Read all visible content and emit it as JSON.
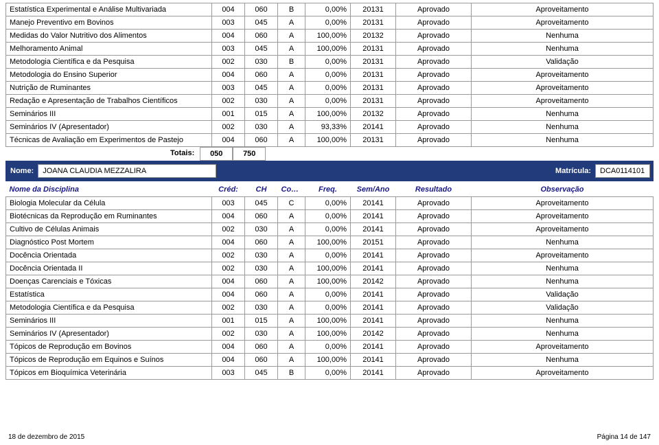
{
  "colors": {
    "border": "#999999",
    "headerText": "#1a1a88",
    "barBg": "#223b7a",
    "barText": "#ffffff"
  },
  "columns": {
    "name": "Nome da Disciplina",
    "cred": "Créd:",
    "ch": "CH",
    "conc": "Conc.",
    "freq": "Freq.",
    "sem": "Sem/Ano",
    "res": "Resultado",
    "obs": "Observação"
  },
  "section1": {
    "rows": [
      {
        "name": "Estatística Experimental e Análise Multivariada",
        "cred": "004",
        "ch": "060",
        "conc": "B",
        "freq": "0,00%",
        "sem": "20131",
        "res": "Aprovado",
        "obs": "Aproveitamento"
      },
      {
        "name": "Manejo Preventivo em Bovinos",
        "cred": "003",
        "ch": "045",
        "conc": "A",
        "freq": "0,00%",
        "sem": "20131",
        "res": "Aprovado",
        "obs": "Aproveitamento"
      },
      {
        "name": "Medidas do Valor Nutritivo dos Alimentos",
        "cred": "004",
        "ch": "060",
        "conc": "A",
        "freq": "100,00%",
        "sem": "20132",
        "res": "Aprovado",
        "obs": "Nenhuma"
      },
      {
        "name": "Melhoramento Animal",
        "cred": "003",
        "ch": "045",
        "conc": "A",
        "freq": "100,00%",
        "sem": "20131",
        "res": "Aprovado",
        "obs": "Nenhuma"
      },
      {
        "name": "Metodologia Científica e da Pesquisa",
        "cred": "002",
        "ch": "030",
        "conc": "B",
        "freq": "0,00%",
        "sem": "20131",
        "res": "Aprovado",
        "obs": "Validação"
      },
      {
        "name": "Metodologia do Ensino Superior",
        "cred": "004",
        "ch": "060",
        "conc": "A",
        "freq": "0,00%",
        "sem": "20131",
        "res": "Aprovado",
        "obs": "Aproveitamento"
      },
      {
        "name": "Nutrição de Ruminantes",
        "cred": "003",
        "ch": "045",
        "conc": "A",
        "freq": "0,00%",
        "sem": "20131",
        "res": "Aprovado",
        "obs": "Aproveitamento"
      },
      {
        "name": "Redação e Apresentação de Trabalhos Científicos",
        "cred": "002",
        "ch": "030",
        "conc": "A",
        "freq": "0,00%",
        "sem": "20131",
        "res": "Aprovado",
        "obs": "Aproveitamento"
      },
      {
        "name": "Seminários III",
        "cred": "001",
        "ch": "015",
        "conc": "A",
        "freq": "100,00%",
        "sem": "20132",
        "res": "Aprovado",
        "obs": "Nenhuma"
      },
      {
        "name": "Seminários IV (Apresentador)",
        "cred": "002",
        "ch": "030",
        "conc": "A",
        "freq": "93,33%",
        "sem": "20141",
        "res": "Aprovado",
        "obs": "Nenhuma"
      },
      {
        "name": "Técnicas de Avaliação em Experimentos de Pastejo",
        "cred": "004",
        "ch": "060",
        "conc": "A",
        "freq": "100,00%",
        "sem": "20131",
        "res": "Aprovado",
        "obs": "Nenhuma"
      }
    ],
    "totals": {
      "label": "Totais:",
      "cred": "050",
      "ch": "750"
    }
  },
  "studentBar": {
    "nameLabel": "Nome:",
    "nameValue": "JOANA CLAUDIA MEZZALIRA",
    "matLabel": "Matrícula:",
    "matValue": "DCA0114101"
  },
  "section2": {
    "rows": [
      {
        "name": "Biologia Molecular da Célula",
        "cred": "003",
        "ch": "045",
        "conc": "C",
        "freq": "0,00%",
        "sem": "20141",
        "res": "Aprovado",
        "obs": "Aproveitamento"
      },
      {
        "name": "Biotécnicas da Reprodução em Ruminantes",
        "cred": "004",
        "ch": "060",
        "conc": "A",
        "freq": "0,00%",
        "sem": "20141",
        "res": "Aprovado",
        "obs": "Aproveitamento"
      },
      {
        "name": "Cultivo de Células Animais",
        "cred": "002",
        "ch": "030",
        "conc": "A",
        "freq": "0,00%",
        "sem": "20141",
        "res": "Aprovado",
        "obs": "Aproveitamento"
      },
      {
        "name": "Diagnóstico Post Mortem",
        "cred": "004",
        "ch": "060",
        "conc": "A",
        "freq": "100,00%",
        "sem": "20151",
        "res": "Aprovado",
        "obs": "Nenhuma"
      },
      {
        "name": "Docência Orientada",
        "cred": "002",
        "ch": "030",
        "conc": "A",
        "freq": "0,00%",
        "sem": "20141",
        "res": "Aprovado",
        "obs": "Aproveitamento"
      },
      {
        "name": "Docência Orientada II",
        "cred": "002",
        "ch": "030",
        "conc": "A",
        "freq": "100,00%",
        "sem": "20141",
        "res": "Aprovado",
        "obs": "Nenhuma"
      },
      {
        "name": "Doenças Carenciais e Tóxicas",
        "cred": "004",
        "ch": "060",
        "conc": "A",
        "freq": "100,00%",
        "sem": "20142",
        "res": "Aprovado",
        "obs": "Nenhuma"
      },
      {
        "name": "Estatística",
        "cred": "004",
        "ch": "060",
        "conc": "A",
        "freq": "0,00%",
        "sem": "20141",
        "res": "Aprovado",
        "obs": "Validação"
      },
      {
        "name": "Metodologia Científica e da Pesquisa",
        "cred": "002",
        "ch": "030",
        "conc": "A",
        "freq": "0,00%",
        "sem": "20141",
        "res": "Aprovado",
        "obs": "Validação"
      },
      {
        "name": "Seminários III",
        "cred": "001",
        "ch": "015",
        "conc": "A",
        "freq": "100,00%",
        "sem": "20141",
        "res": "Aprovado",
        "obs": "Nenhuma"
      },
      {
        "name": "Seminários IV (Apresentador)",
        "cred": "002",
        "ch": "030",
        "conc": "A",
        "freq": "100,00%",
        "sem": "20142",
        "res": "Aprovado",
        "obs": "Nenhuma"
      },
      {
        "name": "Tópicos de Reprodução em Bovinos",
        "cred": "004",
        "ch": "060",
        "conc": "A",
        "freq": "0,00%",
        "sem": "20141",
        "res": "Aprovado",
        "obs": "Aproveitamento"
      },
      {
        "name": "Tópicos de Reprodução em Equinos e Suínos",
        "cred": "004",
        "ch": "060",
        "conc": "A",
        "freq": "100,00%",
        "sem": "20141",
        "res": "Aprovado",
        "obs": "Nenhuma"
      },
      {
        "name": "Tópicos em Bioquímica Veterinária",
        "cred": "003",
        "ch": "045",
        "conc": "B",
        "freq": "0,00%",
        "sem": "20141",
        "res": "Aprovado",
        "obs": "Aproveitamento"
      }
    ]
  },
  "footer": {
    "date": "18 de dezembro de 2015",
    "page": "Página 14 de 147"
  }
}
